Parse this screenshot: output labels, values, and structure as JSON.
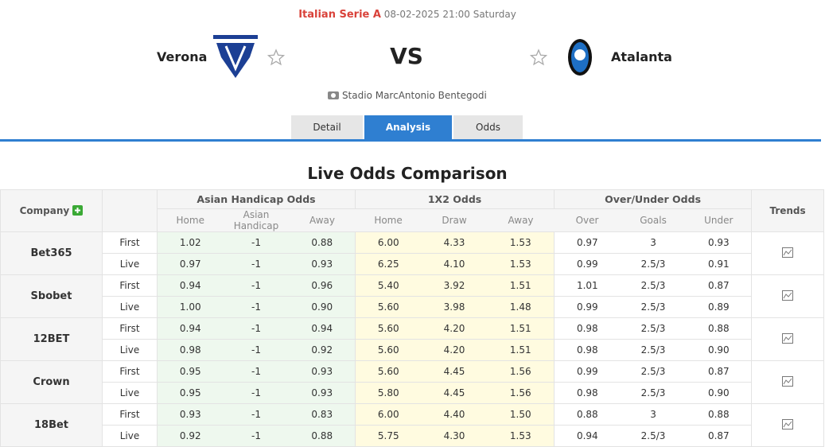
{
  "header": {
    "league": "Italian Serie A",
    "datetime": "08-02-2025 21:00 Saturday",
    "home": "Verona",
    "away": "Atalanta",
    "vs": "VS",
    "venue": "Stadio MarcAntonio Bentegodi"
  },
  "tabs": [
    "Detail",
    "Analysis",
    "Odds"
  ],
  "section_title": "Live Odds Comparison",
  "table": {
    "company_header": "Company",
    "groups": [
      "Asian Handicap Odds",
      "1X2 Odds",
      "Over/Under Odds"
    ],
    "trends_header": "Trends",
    "subheaders": [
      "Home",
      "Asian Handicap",
      "Away",
      "Home",
      "Draw",
      "Away",
      "Over",
      "Goals",
      "Under"
    ],
    "companies": [
      {
        "name": "Bet365",
        "rows": [
          {
            "label": "First",
            "values": [
              "1.02",
              "-1",
              "0.88",
              "6.00",
              "4.33",
              "1.53",
              "0.97",
              "3",
              "0.93"
            ]
          },
          {
            "label": "Live",
            "values": [
              "0.97",
              "-1",
              "0.93",
              "6.25",
              "4.10",
              "1.53",
              "0.99",
              "2.5/3",
              "0.91"
            ]
          }
        ]
      },
      {
        "name": "Sbobet",
        "rows": [
          {
            "label": "First",
            "values": [
              "0.94",
              "-1",
              "0.96",
              "5.40",
              "3.92",
              "1.51",
              "1.01",
              "2.5/3",
              "0.87"
            ]
          },
          {
            "label": "Live",
            "values": [
              "1.00",
              "-1",
              "0.90",
              "5.60",
              "3.98",
              "1.48",
              "0.99",
              "2.5/3",
              "0.89"
            ]
          }
        ]
      },
      {
        "name": "12BET",
        "rows": [
          {
            "label": "First",
            "values": [
              "0.94",
              "-1",
              "0.94",
              "5.60",
              "4.20",
              "1.51",
              "0.98",
              "2.5/3",
              "0.88"
            ]
          },
          {
            "label": "Live",
            "values": [
              "0.98",
              "-1",
              "0.92",
              "5.60",
              "4.20",
              "1.51",
              "0.98",
              "2.5/3",
              "0.90"
            ]
          }
        ]
      },
      {
        "name": "Crown",
        "rows": [
          {
            "label": "First",
            "values": [
              "0.95",
              "-1",
              "0.93",
              "5.60",
              "4.45",
              "1.56",
              "0.99",
              "2.5/3",
              "0.87"
            ]
          },
          {
            "label": "Live",
            "values": [
              "0.95",
              "-1",
              "0.93",
              "5.80",
              "4.45",
              "1.56",
              "0.98",
              "2.5/3",
              "0.90"
            ]
          }
        ]
      },
      {
        "name": "18Bet",
        "rows": [
          {
            "label": "First",
            "values": [
              "0.93",
              "-1",
              "0.83",
              "6.00",
              "4.40",
              "1.50",
              "0.88",
              "3",
              "0.88"
            ]
          },
          {
            "label": "Live",
            "values": [
              "0.92",
              "-1",
              "0.88",
              "5.75",
              "4.30",
              "1.53",
              "0.94",
              "2.5/3",
              "0.87"
            ]
          }
        ]
      }
    ]
  }
}
